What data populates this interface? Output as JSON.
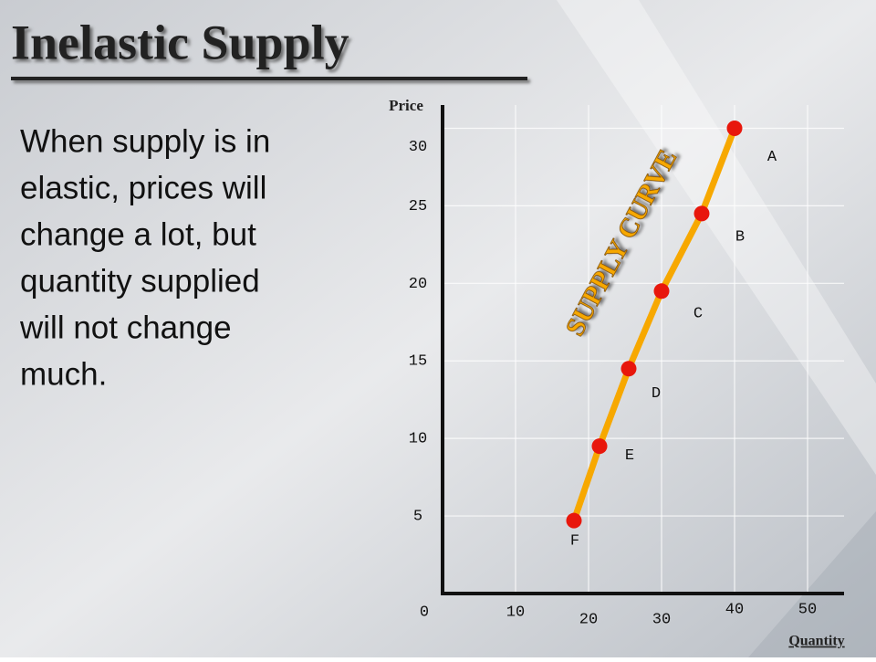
{
  "chart_data": {
    "type": "line",
    "title": "Inelastic Supply",
    "body_lines": [
      "When supply is in",
      "elastic, prices will",
      "change a lot, but",
      "quantity supplied",
      "will not change",
      "much."
    ],
    "x_label": "Quantity",
    "y_label": "Price",
    "annotation": "SUPPLY CURVE",
    "series": [
      {
        "color": "#f7a800",
        "marker_color": "#e8170c",
        "x": [
          40,
          35.5,
          30,
          25.5,
          21.5,
          18
        ],
        "values": [
          30,
          24.5,
          19.5,
          14.5,
          9.5,
          4.7
        ],
        "point_labels": [
          "A",
          "B",
          "C",
          "D",
          "E",
          "F"
        ]
      }
    ],
    "xlim": [
      0,
      55
    ],
    "xticks": [
      0,
      10,
      20,
      30,
      40,
      50
    ],
    "ylim": [
      0,
      31.5
    ],
    "yticks": [
      5,
      10,
      15,
      20,
      25,
      30
    ],
    "grid": true
  }
}
